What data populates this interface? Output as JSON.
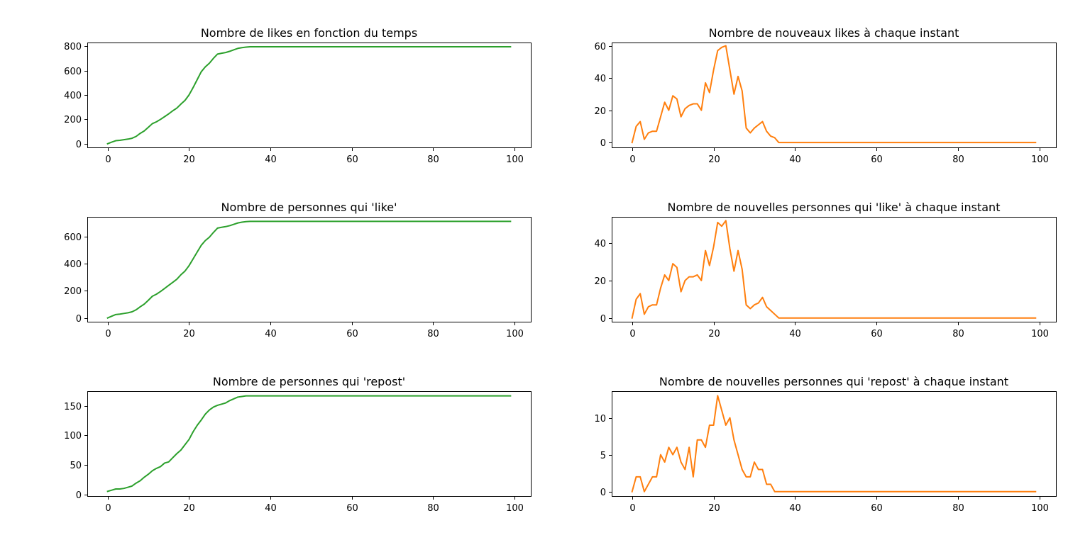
{
  "chart_data": [
    {
      "type": "line",
      "title": "Nombre de likes en fonction du temps",
      "color": "#2ca02c",
      "xlim": [
        -5,
        104
      ],
      "ylim": [
        -30,
        830
      ],
      "xticks": [
        0,
        20,
        40,
        60,
        80,
        100
      ],
      "yticks": [
        0,
        200,
        400,
        600,
        800
      ],
      "x_range": [
        0,
        99
      ],
      "values": [
        0,
        13,
        25,
        28,
        33,
        38,
        45,
        60,
        85,
        105,
        135,
        165,
        180,
        200,
        222,
        245,
        270,
        292,
        325,
        355,
        400,
        460,
        525,
        590,
        630,
        660,
        700,
        735,
        742,
        748,
        758,
        770,
        782,
        788,
        792,
        795,
        795,
        795,
        795,
        795,
        795,
        795,
        795,
        795,
        795,
        795,
        795,
        795,
        795,
        795,
        795,
        795,
        795,
        795,
        795,
        795,
        795,
        795,
        795,
        795,
        795,
        795,
        795,
        795,
        795,
        795,
        795,
        795,
        795,
        795,
        795,
        795,
        795,
        795,
        795,
        795,
        795,
        795,
        795,
        795,
        795,
        795,
        795,
        795,
        795,
        795,
        795,
        795,
        795,
        795,
        795,
        795,
        795,
        795,
        795,
        795,
        795,
        795,
        795,
        795
      ]
    },
    {
      "type": "line",
      "title": "Nombre de nouveaux likes à chaque instant",
      "color": "#ff7f0e",
      "xlim": [
        -5,
        104
      ],
      "ylim": [
        -3,
        62
      ],
      "xticks": [
        0,
        20,
        40,
        60,
        80,
        100
      ],
      "yticks": [
        0,
        20,
        40,
        60
      ],
      "x_range": [
        0,
        99
      ],
      "values": [
        0,
        10,
        13,
        2,
        6,
        7,
        7,
        16,
        25,
        20,
        29,
        27,
        16,
        21,
        23,
        24,
        24,
        20,
        37,
        31,
        45,
        57,
        59,
        60,
        45,
        30,
        41,
        32,
        9,
        6,
        9,
        11,
        13,
        7,
        4,
        3,
        0,
        0,
        0,
        0,
        0,
        0,
        0,
        0,
        0,
        0,
        0,
        0,
        0,
        0,
        0,
        0,
        0,
        0,
        0,
        0,
        0,
        0,
        0,
        0,
        0,
        0,
        0,
        0,
        0,
        0,
        0,
        0,
        0,
        0,
        0,
        0,
        0,
        0,
        0,
        0,
        0,
        0,
        0,
        0,
        0,
        0,
        0,
        0,
        0,
        0,
        0,
        0,
        0,
        0,
        0,
        0,
        0,
        0,
        0,
        0,
        0,
        0,
        0,
        0
      ]
    },
    {
      "type": "line",
      "title": "Nombre de personnes qui 'like'",
      "color": "#2ca02c",
      "xlim": [
        -5,
        104
      ],
      "ylim": [
        -28,
        745
      ],
      "xticks": [
        0,
        20,
        40,
        60,
        80,
        100
      ],
      "yticks": [
        0,
        200,
        400,
        600
      ],
      "x_range": [
        0,
        99
      ],
      "values": [
        0,
        13,
        25,
        28,
        33,
        38,
        45,
        60,
        82,
        102,
        130,
        160,
        175,
        195,
        217,
        240,
        262,
        285,
        318,
        345,
        385,
        435,
        485,
        535,
        570,
        595,
        630,
        662,
        668,
        673,
        680,
        690,
        700,
        706,
        710,
        712,
        712,
        712,
        712,
        712,
        712,
        712,
        712,
        712,
        712,
        712,
        712,
        712,
        712,
        712,
        712,
        712,
        712,
        712,
        712,
        712,
        712,
        712,
        712,
        712,
        712,
        712,
        712,
        712,
        712,
        712,
        712,
        712,
        712,
        712,
        712,
        712,
        712,
        712,
        712,
        712,
        712,
        712,
        712,
        712,
        712,
        712,
        712,
        712,
        712,
        712,
        712,
        712,
        712,
        712,
        712,
        712,
        712,
        712,
        712,
        712,
        712,
        712,
        712,
        712
      ]
    },
    {
      "type": "line",
      "title": "Nouvelles personnes qui 'like' à chaque instant",
      "color": "#ff7f0e",
      "xlim": [
        -5,
        104
      ],
      "ylim": [
        -2,
        54
      ],
      "xticks": [
        0,
        20,
        40,
        60,
        80,
        100
      ],
      "yticks": [
        0,
        20,
        40
      ],
      "x_range": [
        0,
        99
      ],
      "values": [
        0,
        10,
        13,
        2,
        6,
        7,
        7,
        16,
        23,
        20,
        29,
        27,
        14,
        20,
        22,
        22,
        23,
        20,
        36,
        28,
        38,
        51,
        49,
        52,
        37,
        25,
        36,
        26,
        7,
        5,
        7,
        8,
        11,
        6,
        4,
        2,
        0,
        0,
        0,
        0,
        0,
        0,
        0,
        0,
        0,
        0,
        0,
        0,
        0,
        0,
        0,
        0,
        0,
        0,
        0,
        0,
        0,
        0,
        0,
        0,
        0,
        0,
        0,
        0,
        0,
        0,
        0,
        0,
        0,
        0,
        0,
        0,
        0,
        0,
        0,
        0,
        0,
        0,
        0,
        0,
        0,
        0,
        0,
        0,
        0,
        0,
        0,
        0,
        0,
        0,
        0,
        0,
        0,
        0,
        0,
        0,
        0,
        0,
        0,
        0
      ]
    },
    {
      "type": "line",
      "title": "Nombre de personnes qui 'repost'",
      "color": "#2ca02c",
      "xlim": [
        -5,
        104
      ],
      "ylim": [
        -3,
        175
      ],
      "xticks": [
        0,
        20,
        40,
        60,
        80,
        100
      ],
      "yticks": [
        0,
        50,
        100,
        150
      ],
      "x_range": [
        0,
        99
      ],
      "values": [
        5,
        7,
        9,
        9,
        10,
        12,
        14,
        19,
        23,
        29,
        34,
        40,
        44,
        47,
        53,
        55,
        62,
        69,
        75,
        84,
        93,
        106,
        117,
        126,
        136,
        143,
        148,
        151,
        153,
        155,
        159,
        162,
        165,
        166,
        167,
        167,
        167,
        167,
        167,
        167,
        167,
        167,
        167,
        167,
        167,
        167,
        167,
        167,
        167,
        167,
        167,
        167,
        167,
        167,
        167,
        167,
        167,
        167,
        167,
        167,
        167,
        167,
        167,
        167,
        167,
        167,
        167,
        167,
        167,
        167,
        167,
        167,
        167,
        167,
        167,
        167,
        167,
        167,
        167,
        167,
        167,
        167,
        167,
        167,
        167,
        167,
        167,
        167,
        167,
        167,
        167,
        167,
        167,
        167,
        167,
        167,
        167,
        167,
        167,
        167
      ]
    },
    {
      "type": "line",
      "title": "Nombre de nouvelles personnes qui 'repost' à chaque instant",
      "color": "#ff7f0e",
      "xlim": [
        -5,
        104
      ],
      "ylim": [
        -0.6,
        13.6
      ],
      "xticks": [
        0,
        20,
        40,
        60,
        80,
        100
      ],
      "yticks": [
        0,
        5,
        10
      ],
      "x_range": [
        0,
        99
      ],
      "values": [
        0,
        2,
        2,
        0,
        1,
        2,
        2,
        5,
        4,
        6,
        5,
        6,
        4,
        3,
        6,
        2,
        7,
        7,
        6,
        9,
        9,
        13,
        11,
        9,
        10,
        7,
        5,
        3,
        2,
        2,
        4,
        3,
        3,
        1,
        1,
        0,
        0,
        0,
        0,
        0,
        0,
        0,
        0,
        0,
        0,
        0,
        0,
        0,
        0,
        0,
        0,
        0,
        0,
        0,
        0,
        0,
        0,
        0,
        0,
        0,
        0,
        0,
        0,
        0,
        0,
        0,
        0,
        0,
        0,
        0,
        0,
        0,
        0,
        0,
        0,
        0,
        0,
        0,
        0,
        0,
        0,
        0,
        0,
        0,
        0,
        0,
        0,
        0,
        0,
        0,
        0,
        0,
        0,
        0,
        0,
        0,
        0,
        0,
        0,
        0
      ]
    }
  ]
}
